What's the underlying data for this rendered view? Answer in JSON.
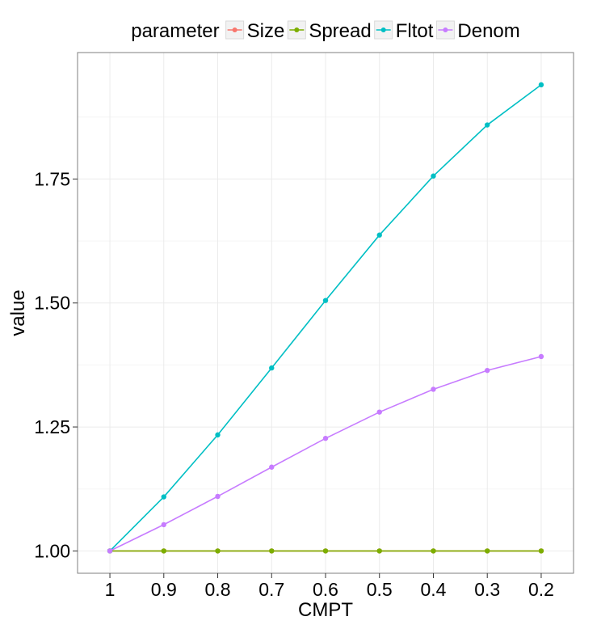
{
  "chart_data": {
    "type": "line",
    "title": "",
    "xlabel": "CMPT",
    "ylabel": "value",
    "categories": [
      "1",
      "0.9",
      "0.8",
      "0.7",
      "0.6",
      "0.5",
      "0.4",
      "0.3",
      "0.2"
    ],
    "x_axis_reversed": true,
    "ylim": [
      0.955,
      2.005
    ],
    "yticks": [
      "1.00",
      "1.25",
      "1.50",
      "1.75"
    ],
    "grid": true,
    "legend": {
      "title": "parameter",
      "position": "top"
    },
    "series": [
      {
        "name": "Size",
        "color": "#f8766d",
        "values": [
          1.0,
          1.0,
          1.0,
          1.0,
          1.0,
          1.0,
          1.0,
          1.0,
          1.0
        ]
      },
      {
        "name": "Spread",
        "color": "#7cae00",
        "values": [
          1.0,
          1.0,
          1.0,
          1.0,
          1.0,
          1.0,
          1.0,
          1.0,
          1.0
        ]
      },
      {
        "name": "Fltot",
        "color": "#00bfc4",
        "values": [
          1.0,
          1.109,
          1.234,
          1.369,
          1.505,
          1.637,
          1.756,
          1.859,
          1.94
        ]
      },
      {
        "name": "Denom",
        "color": "#c77cff",
        "values": [
          1.0,
          1.053,
          1.11,
          1.169,
          1.227,
          1.28,
          1.326,
          1.364,
          1.392
        ]
      }
    ]
  }
}
